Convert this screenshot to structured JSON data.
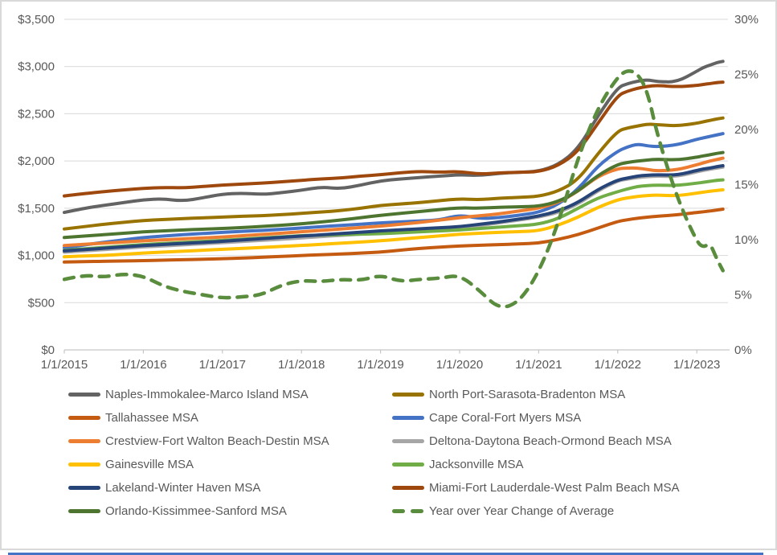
{
  "frame": {
    "background": "#FFFFFF",
    "border_color": "#D9D9D9",
    "bottom_accent_color": "#4472C4",
    "gridline_color": "#D9D9D9",
    "axis_line_color": "#C6C6C6",
    "text_color": "#595959"
  },
  "chart_data": {
    "type": "line",
    "grid": true,
    "legend_position": "bottom",
    "x_axis": {
      "labels": [
        "1/1/2015",
        "1/1/2016",
        "1/1/2017",
        "1/1/2018",
        "1/1/2019",
        "1/1/2020",
        "1/1/2021",
        "1/1/2022",
        "1/1/2023"
      ],
      "tick_years": [
        2015,
        2016,
        2017,
        2018,
        2019,
        2020,
        2021,
        2022,
        2023
      ]
    },
    "y_axis_left": {
      "labels": [
        "$0",
        "$500",
        "$1,000",
        "$1,500",
        "$2,000",
        "$2,500",
        "$3,000",
        "$3,500"
      ],
      "min": 0,
      "max": 3500,
      "step": 500
    },
    "y_axis_right": {
      "labels": [
        "0%",
        "5%",
        "10%",
        "15%",
        "20%",
        "25%",
        "30%"
      ],
      "min": 0,
      "max": 30,
      "step": 5
    },
    "x": [
      2015,
      2015.25,
      2015.5,
      2015.75,
      2016,
      2016.25,
      2016.5,
      2016.75,
      2017,
      2017.25,
      2017.5,
      2017.75,
      2018,
      2018.25,
      2018.5,
      2018.75,
      2019,
      2019.25,
      2019.5,
      2019.75,
      2020,
      2020.25,
      2020.5,
      2020.75,
      2021,
      2021.25,
      2021.5,
      2021.75,
      2022,
      2022.125,
      2022.25,
      2022.375,
      2022.5,
      2022.75,
      2023,
      2023.083,
      2023.167,
      2023.25,
      2023.33
    ],
    "series": [
      {
        "id": "naples",
        "name": "Naples-Immokalee-Marco Island MSA",
        "color": "#636363",
        "axis": "left",
        "dashed": false,
        "values": [
          1455,
          1500,
          1530,
          1560,
          1590,
          1600,
          1575,
          1610,
          1650,
          1660,
          1645,
          1665,
          1690,
          1725,
          1705,
          1745,
          1790,
          1810,
          1825,
          1840,
          1855,
          1845,
          1870,
          1880,
          1890,
          1960,
          2130,
          2480,
          2780,
          2820,
          2845,
          2860,
          2840,
          2835,
          2950,
          2990,
          3015,
          3040,
          3055
        ]
      },
      {
        "id": "north-port",
        "name": "North Port-Sarasota-Bradenton MSA",
        "color": "#997300",
        "axis": "left",
        "dashed": false,
        "values": [
          1280,
          1305,
          1330,
          1350,
          1370,
          1380,
          1390,
          1398,
          1405,
          1415,
          1420,
          1432,
          1445,
          1460,
          1475,
          1500,
          1530,
          1545,
          1560,
          1580,
          1600,
          1590,
          1605,
          1615,
          1625,
          1680,
          1800,
          2080,
          2320,
          2350,
          2370,
          2390,
          2385,
          2370,
          2400,
          2415,
          2430,
          2445,
          2455
        ]
      },
      {
        "id": "tallahassee",
        "name": "Tallahassee MSA",
        "color": "#C55A11",
        "axis": "left",
        "dashed": false,
        "values": [
          930,
          935,
          938,
          942,
          945,
          950,
          955,
          960,
          965,
          972,
          980,
          990,
          1000,
          1008,
          1015,
          1025,
          1035,
          1055,
          1075,
          1088,
          1100,
          1108,
          1115,
          1122,
          1130,
          1170,
          1220,
          1290,
          1360,
          1378,
          1395,
          1405,
          1415,
          1430,
          1455,
          1462,
          1470,
          1480,
          1490
        ]
      },
      {
        "id": "cape-coral",
        "name": "Cape Coral-Fort Myers MSA",
        "color": "#4472C4",
        "axis": "left",
        "dashed": false,
        "values": [
          1080,
          1110,
          1140,
          1165,
          1190,
          1205,
          1220,
          1232,
          1245,
          1255,
          1265,
          1278,
          1290,
          1305,
          1318,
          1330,
          1345,
          1355,
          1365,
          1375,
          1430,
          1390,
          1400,
          1425,
          1455,
          1540,
          1700,
          1950,
          2105,
          2150,
          2180,
          2160,
          2150,
          2170,
          2230,
          2245,
          2260,
          2275,
          2290
        ]
      },
      {
        "id": "crestview",
        "name": "Crestview-Fort Walton Beach-Destin MSA",
        "color": "#ED7D31",
        "axis": "left",
        "dashed": false,
        "values": [
          1105,
          1118,
          1130,
          1142,
          1155,
          1165,
          1175,
          1185,
          1195,
          1208,
          1222,
          1236,
          1250,
          1265,
          1280,
          1295,
          1310,
          1330,
          1350,
          1375,
          1400,
          1420,
          1440,
          1470,
          1500,
          1560,
          1680,
          1840,
          1920,
          1925,
          1925,
          1910,
          1895,
          1905,
          1960,
          1980,
          2000,
          2015,
          2030
        ]
      },
      {
        "id": "deltona",
        "name": "Deltona-Daytona Beach-Ormond Beach MSA",
        "color": "#A6A6A6",
        "axis": "left",
        "dashed": false,
        "values": [
          1035,
          1048,
          1062,
          1075,
          1090,
          1101,
          1112,
          1123,
          1135,
          1147,
          1160,
          1172,
          1185,
          1199,
          1212,
          1226,
          1240,
          1252,
          1265,
          1277,
          1290,
          1315,
          1345,
          1375,
          1405,
          1455,
          1545,
          1685,
          1790,
          1808,
          1825,
          1835,
          1840,
          1835,
          1885,
          1900,
          1912,
          1925,
          1935
        ]
      },
      {
        "id": "gainesville",
        "name": "Gainesville MSA",
        "color": "#FFC000",
        "axis": "left",
        "dashed": false,
        "values": [
          985,
          995,
          1000,
          1012,
          1025,
          1035,
          1045,
          1055,
          1065,
          1075,
          1085,
          1095,
          1105,
          1118,
          1130,
          1142,
          1155,
          1172,
          1190,
          1207,
          1225,
          1235,
          1245,
          1252,
          1260,
          1320,
          1405,
          1510,
          1590,
          1610,
          1625,
          1635,
          1640,
          1630,
          1660,
          1670,
          1680,
          1688,
          1695
        ]
      },
      {
        "id": "jacksonville",
        "name": "Jacksonville MSA",
        "color": "#70AD47",
        "axis": "left",
        "dashed": false,
        "values": [
          1055,
          1070,
          1085,
          1100,
          1115,
          1126,
          1137,
          1148,
          1160,
          1172,
          1185,
          1197,
          1210,
          1215,
          1220,
          1225,
          1230,
          1240,
          1250,
          1260,
          1270,
          1285,
          1300,
          1315,
          1330,
          1390,
          1500,
          1610,
          1675,
          1705,
          1730,
          1740,
          1745,
          1740,
          1765,
          1775,
          1785,
          1795,
          1800
        ]
      },
      {
        "id": "lakeland",
        "name": "Lakeland-Winter Haven MSA",
        "color": "#264478",
        "axis": "left",
        "dashed": false,
        "values": [
          1048,
          1062,
          1076,
          1090,
          1105,
          1116,
          1127,
          1138,
          1150,
          1164,
          1178,
          1191,
          1205,
          1219,
          1232,
          1246,
          1260,
          1271,
          1282,
          1293,
          1305,
          1330,
          1355,
          1385,
          1415,
          1470,
          1560,
          1700,
          1800,
          1820,
          1840,
          1850,
          1855,
          1850,
          1900,
          1915,
          1925,
          1940,
          1950
        ]
      },
      {
        "id": "miami",
        "name": "Miami-Fort Lauderdale-West Palm Beach MSA",
        "color": "#9E480E",
        "axis": "left",
        "dashed": false,
        "values": [
          1630,
          1655,
          1675,
          1695,
          1710,
          1720,
          1715,
          1730,
          1745,
          1755,
          1765,
          1780,
          1795,
          1810,
          1820,
          1840,
          1855,
          1875,
          1890,
          1880,
          1890,
          1860,
          1875,
          1880,
          1885,
          1950,
          2100,
          2400,
          2695,
          2740,
          2770,
          2790,
          2800,
          2785,
          2800,
          2810,
          2820,
          2830,
          2835
        ]
      },
      {
        "id": "orlando",
        "name": "Orlando-Kissimmee-Sanford MSA",
        "color": "#4D7530",
        "axis": "left",
        "dashed": false,
        "values": [
          1190,
          1205,
          1220,
          1235,
          1250,
          1260,
          1270,
          1278,
          1285,
          1295,
          1308,
          1320,
          1335,
          1355,
          1375,
          1400,
          1425,
          1445,
          1465,
          1485,
          1505,
          1500,
          1510,
          1515,
          1520,
          1570,
          1680,
          1850,
          1965,
          1985,
          2000,
          2010,
          2020,
          2010,
          2040,
          2055,
          2065,
          2080,
          2090
        ]
      },
      {
        "id": "yoy-change",
        "name": "Year over Year Change of Average",
        "color": "#598C3C",
        "axis": "right",
        "dashed": true,
        "values": [
          6.4,
          6.8,
          6.6,
          6.9,
          6.7,
          5.8,
          5.3,
          5.0,
          4.7,
          4.8,
          5.0,
          5.9,
          6.3,
          6.2,
          6.4,
          6.3,
          6.8,
          6.2,
          6.4,
          6.5,
          6.8,
          5.4,
          3.7,
          4.3,
          7.0,
          11.5,
          17.5,
          22.0,
          24.8,
          25.4,
          25.1,
          23.5,
          19.5,
          13.8,
          9.8,
          9.3,
          9.7,
          8.3,
          7.2
        ]
      }
    ]
  }
}
